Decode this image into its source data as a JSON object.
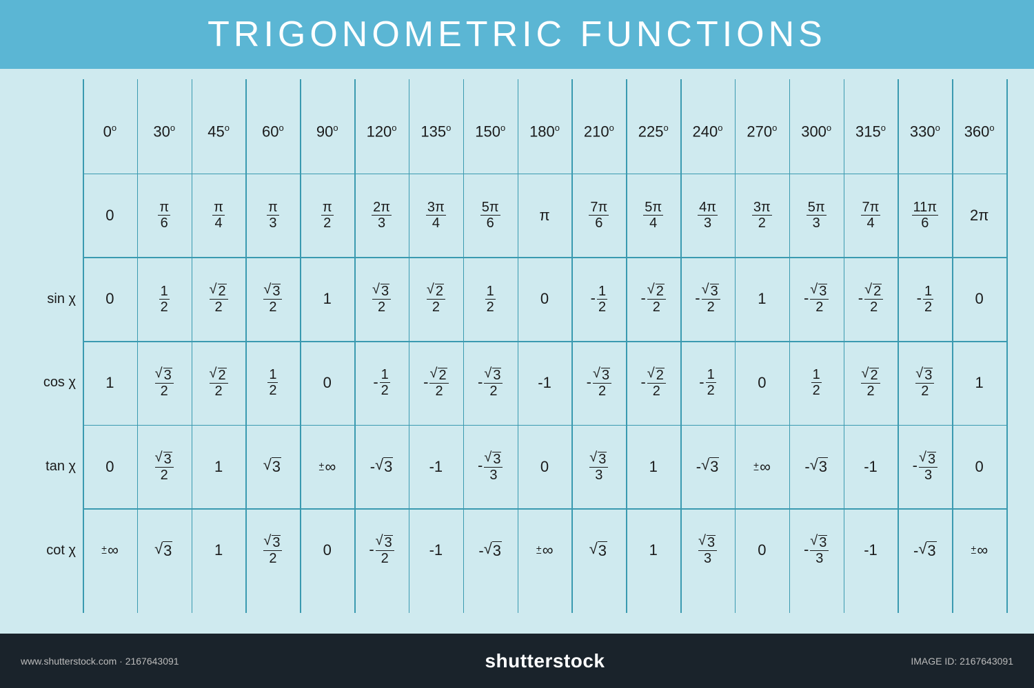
{
  "title": "TRIGONOMETRIC FUNCTIONS",
  "colors": {
    "header_bg": "#5bb6d4",
    "table_bg": "#cfeaef",
    "grid_line": "#3a9ab0",
    "text": "#1a1a1a",
    "title_text": "#ffffff",
    "footer_bg": "#1a232b"
  },
  "typography": {
    "title_fontsize": 52,
    "cell_fontsize": 22,
    "rowlabel_fontsize": 20
  },
  "row_labels": [
    "",
    "",
    "sin χ",
    "cos χ",
    "tan χ",
    "cot χ"
  ],
  "table": {
    "type": "table",
    "n_cols": 17,
    "n_rows": 6,
    "rows": [
      [
        {
          "t": "deg",
          "v": "0"
        },
        {
          "t": "deg",
          "v": "30"
        },
        {
          "t": "deg",
          "v": "45"
        },
        {
          "t": "deg",
          "v": "60"
        },
        {
          "t": "deg",
          "v": "90"
        },
        {
          "t": "deg",
          "v": "120"
        },
        {
          "t": "deg",
          "v": "135"
        },
        {
          "t": "deg",
          "v": "150"
        },
        {
          "t": "deg",
          "v": "180"
        },
        {
          "t": "deg",
          "v": "210"
        },
        {
          "t": "deg",
          "v": "225"
        },
        {
          "t": "deg",
          "v": "240"
        },
        {
          "t": "deg",
          "v": "270"
        },
        {
          "t": "deg",
          "v": "300"
        },
        {
          "t": "deg",
          "v": "315"
        },
        {
          "t": "deg",
          "v": "330"
        },
        {
          "t": "deg",
          "v": "360"
        }
      ],
      [
        {
          "t": "txt",
          "v": "0"
        },
        {
          "t": "frac",
          "n": "π",
          "d": "6"
        },
        {
          "t": "frac",
          "n": "π",
          "d": "4"
        },
        {
          "t": "frac",
          "n": "π",
          "d": "3"
        },
        {
          "t": "frac",
          "n": "π",
          "d": "2"
        },
        {
          "t": "frac",
          "n": "2π",
          "d": "3"
        },
        {
          "t": "frac",
          "n": "3π",
          "d": "4"
        },
        {
          "t": "frac",
          "n": "5π",
          "d": "6"
        },
        {
          "t": "txt",
          "v": "π"
        },
        {
          "t": "frac",
          "n": "7π",
          "d": "6"
        },
        {
          "t": "frac",
          "n": "5π",
          "d": "4"
        },
        {
          "t": "frac",
          "n": "4π",
          "d": "3"
        },
        {
          "t": "frac",
          "n": "3π",
          "d": "2"
        },
        {
          "t": "frac",
          "n": "5π",
          "d": "3"
        },
        {
          "t": "frac",
          "n": "7π",
          "d": "4"
        },
        {
          "t": "frac",
          "n": "11π",
          "d": "6"
        },
        {
          "t": "txt",
          "v": "2π"
        }
      ],
      [
        {
          "t": "txt",
          "v": "0"
        },
        {
          "t": "frac",
          "n": "1",
          "d": "2"
        },
        {
          "t": "sqfrac",
          "r": "2",
          "d": "2"
        },
        {
          "t": "sqfrac",
          "r": "3",
          "d": "2"
        },
        {
          "t": "txt",
          "v": "1"
        },
        {
          "t": "sqfrac",
          "r": "3",
          "d": "2"
        },
        {
          "t": "sqfrac",
          "r": "2",
          "d": "2"
        },
        {
          "t": "frac",
          "n": "1",
          "d": "2"
        },
        {
          "t": "txt",
          "v": "0"
        },
        {
          "t": "frac",
          "neg": true,
          "n": "1",
          "d": "2"
        },
        {
          "t": "sqfrac",
          "neg": true,
          "r": "2",
          "d": "2"
        },
        {
          "t": "sqfrac",
          "neg": true,
          "r": "3",
          "d": "2"
        },
        {
          "t": "txt",
          "v": "1"
        },
        {
          "t": "sqfrac",
          "neg": true,
          "r": "3",
          "d": "2"
        },
        {
          "t": "sqfrac",
          "neg": true,
          "r": "2",
          "d": "2"
        },
        {
          "t": "frac",
          "neg": true,
          "n": "1",
          "d": "2"
        },
        {
          "t": "txt",
          "v": "0"
        }
      ],
      [
        {
          "t": "txt",
          "v": "1"
        },
        {
          "t": "sqfrac",
          "r": "3",
          "d": "2"
        },
        {
          "t": "sqfrac",
          "r": "2",
          "d": "2"
        },
        {
          "t": "frac",
          "n": "1",
          "d": "2"
        },
        {
          "t": "txt",
          "v": "0"
        },
        {
          "t": "frac",
          "neg": true,
          "n": "1",
          "d": "2"
        },
        {
          "t": "sqfrac",
          "neg": true,
          "r": "2",
          "d": "2"
        },
        {
          "t": "sqfrac",
          "neg": true,
          "r": "3",
          "d": "2"
        },
        {
          "t": "txt",
          "v": "-1"
        },
        {
          "t": "sqfrac",
          "neg": true,
          "r": "3",
          "d": "2"
        },
        {
          "t": "sqfrac",
          "neg": true,
          "r": "2",
          "d": "2"
        },
        {
          "t": "frac",
          "neg": true,
          "n": "1",
          "d": "2"
        },
        {
          "t": "txt",
          "v": "0"
        },
        {
          "t": "frac",
          "n": "1",
          "d": "2"
        },
        {
          "t": "sqfrac",
          "r": "2",
          "d": "2"
        },
        {
          "t": "sqfrac",
          "r": "3",
          "d": "2"
        },
        {
          "t": "txt",
          "v": "1"
        }
      ],
      [
        {
          "t": "txt",
          "v": "0"
        },
        {
          "t": "sqfrac",
          "r": "3",
          "d": "2"
        },
        {
          "t": "txt",
          "v": "1"
        },
        {
          "t": "sqrt",
          "r": "3"
        },
        {
          "t": "pminf"
        },
        {
          "t": "sqrt",
          "neg": true,
          "r": "3"
        },
        {
          "t": "txt",
          "v": "-1"
        },
        {
          "t": "sqfrac",
          "neg": true,
          "r": "3",
          "d": "3"
        },
        {
          "t": "txt",
          "v": "0"
        },
        {
          "t": "sqfrac",
          "r": "3",
          "d": "3"
        },
        {
          "t": "txt",
          "v": "1"
        },
        {
          "t": "sqrt",
          "neg": true,
          "r": "3"
        },
        {
          "t": "pminf"
        },
        {
          "t": "sqrt",
          "neg": true,
          "r": "3"
        },
        {
          "t": "txt",
          "v": "-1"
        },
        {
          "t": "sqfrac",
          "neg": true,
          "r": "3",
          "d": "3"
        },
        {
          "t": "txt",
          "v": "0"
        }
      ],
      [
        {
          "t": "pminf"
        },
        {
          "t": "sqrt",
          "r": "3"
        },
        {
          "t": "txt",
          "v": "1"
        },
        {
          "t": "sqfrac",
          "r": "3",
          "d": "2"
        },
        {
          "t": "txt",
          "v": "0"
        },
        {
          "t": "sqfrac",
          "neg": true,
          "r": "3",
          "d": "2"
        },
        {
          "t": "txt",
          "v": "-1"
        },
        {
          "t": "sqrt",
          "neg": true,
          "r": "3"
        },
        {
          "t": "pminf"
        },
        {
          "t": "sqrt",
          "r": "3"
        },
        {
          "t": "txt",
          "v": "1"
        },
        {
          "t": "sqfrac",
          "r": "3",
          "d": "3"
        },
        {
          "t": "txt",
          "v": "0"
        },
        {
          "t": "sqfrac",
          "neg": true,
          "r": "3",
          "d": "3"
        },
        {
          "t": "txt",
          "v": "-1"
        },
        {
          "t": "sqrt",
          "neg": true,
          "r": "3"
        },
        {
          "t": "pminf"
        }
      ]
    ]
  },
  "footer": {
    "brand_main": "shutterstock",
    "brand_sub": "",
    "image_id": "IMAGE ID: 2167643091",
    "bar_url": "www.shutterstock.com · 2167643091"
  }
}
